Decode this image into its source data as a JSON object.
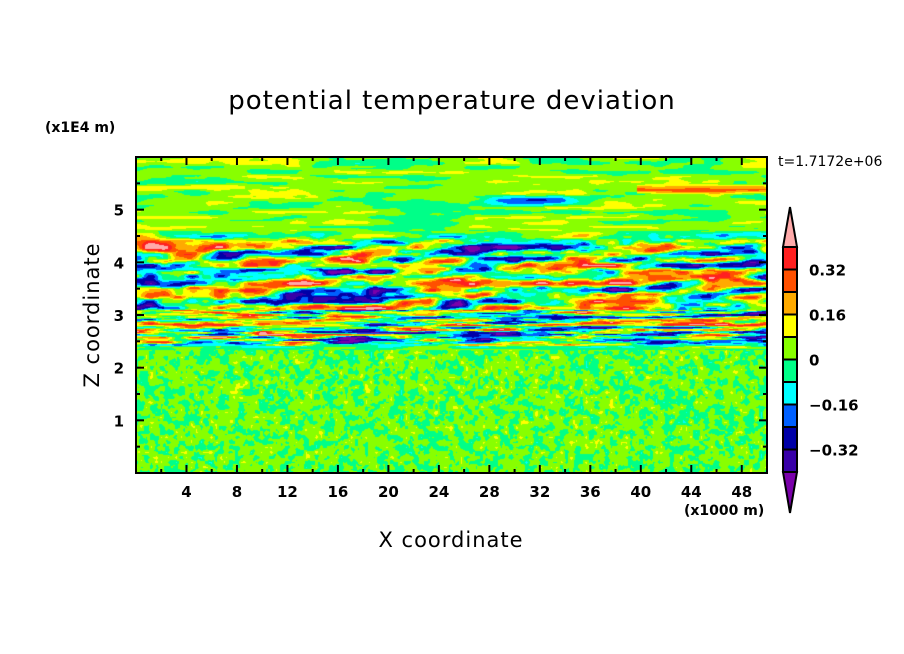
{
  "chart_data": {
    "type": "heatmap",
    "title": "potential temperature deviation",
    "xlabel": "X coordinate",
    "ylabel": "Z coordinate",
    "x_unit": "(x1000 m)",
    "y_unit": "(x1E4 m)",
    "time_label": "t=1.7172e+06",
    "xlim": [
      0,
      50
    ],
    "ylim": [
      0,
      6
    ],
    "xticks": [
      4,
      8,
      12,
      16,
      20,
      24,
      28,
      32,
      36,
      40,
      44,
      48
    ],
    "yticks": [
      1,
      2,
      3,
      4,
      5
    ],
    "levels": [
      -0.4,
      -0.32,
      -0.24,
      -0.16,
      -0.08,
      0,
      0.08,
      0.16,
      0.24,
      0.32,
      0.4
    ],
    "colors": [
      "#7a00aa",
      "#3800a8",
      "#0000a8",
      "#0060ff",
      "#00ffff",
      "#00ff88",
      "#88ff00",
      "#ffff00",
      "#ffaa00",
      "#ff5000",
      "#ff2020",
      "#ffaaaa"
    ],
    "colorbar_labels": [
      {
        "value": 0.32,
        "text": "0.32"
      },
      {
        "value": 0.16,
        "text": "0.16"
      },
      {
        "value": 0,
        "text": "0"
      },
      {
        "value": -0.16,
        "text": "−0.16"
      },
      {
        "value": -0.32,
        "text": "−0.32"
      }
    ],
    "field_description_regions": [
      {
        "z_range": [
          0,
          2.3
        ],
        "amplitude": 0.08
      },
      {
        "z_range": [
          2.3,
          4.6
        ],
        "amplitude": 0.45
      },
      {
        "z_range": [
          4.6,
          6
        ],
        "amplitude": 0.18
      }
    ]
  }
}
